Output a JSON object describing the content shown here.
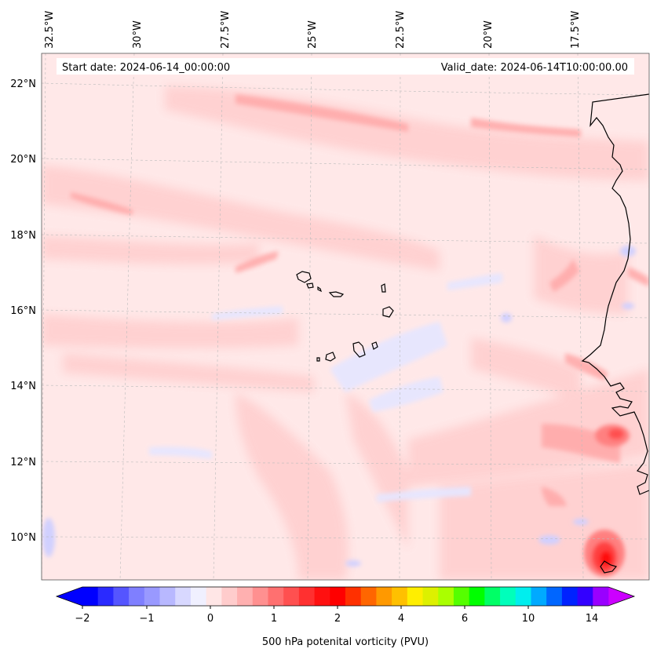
{
  "header": {
    "start_date": "Start date: 2024-06-14_00:00:00",
    "valid_date": "Valid_date: 2024-06-14T10:00:00.00"
  },
  "longitude_labels": [
    "32.5°W",
    "30°W",
    "27.5°W",
    "25°W",
    "22.5°W",
    "20°W",
    "17.5°W"
  ],
  "latitude_labels": [
    "22°N",
    "20°N",
    "18°N",
    "16°N",
    "14°N",
    "12°N",
    "10°N"
  ],
  "colorbar": {
    "label": "500 hPa potenital vorticity (PVU)",
    "tick_labels": [
      "−2",
      "−1",
      "0",
      "1",
      "2",
      "4",
      "6",
      "10",
      "14"
    ],
    "colors": [
      "#0000ff",
      "#2a2aff",
      "#5555ff",
      "#7f7fff",
      "#9999ff",
      "#b8b8ff",
      "#d8d8ff",
      "#f0f0ff",
      "#ffe6e6",
      "#ffcccc",
      "#ffb0b0",
      "#ff9090",
      "#ff7070",
      "#ff5050",
      "#ff3030",
      "#ff1010",
      "#ff0000",
      "#ff3000",
      "#ff6600",
      "#ff9900",
      "#ffc000",
      "#ffee00",
      "#ddf000",
      "#aaff00",
      "#55ff00",
      "#00ff00",
      "#00ff66",
      "#00ffbb",
      "#00eeee",
      "#00aaff",
      "#0066ff",
      "#0022ff",
      "#3300ff",
      "#9900ff"
    ],
    "extend_low_color": "#0000ff",
    "extend_high_color": "#cc00ff"
  },
  "colors": {
    "background_field": "#ffe8e8",
    "coastline": "#000000",
    "gridline": "#bbbbbb"
  }
}
